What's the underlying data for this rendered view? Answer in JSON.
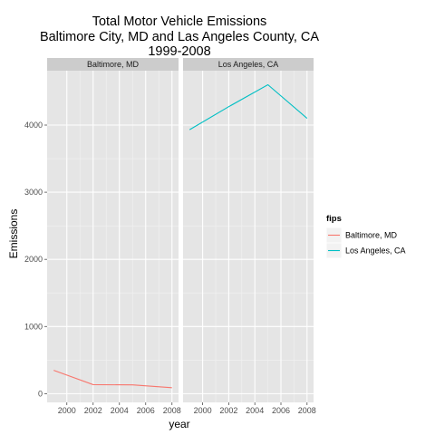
{
  "chart_data": {
    "type": "line",
    "title_lines": [
      "Total Motor Vehicle Emissions",
      "Baltimore City, MD and Las Angeles County, CA",
      "1999-2008"
    ],
    "xlabel": "year",
    "ylabel": "Emissions",
    "x_ticks": [
      2000,
      2002,
      2004,
      2006,
      2008
    ],
    "y_ticks": [
      0,
      1000,
      2000,
      3000,
      4000
    ],
    "xlim": [
      1998.5,
      2008.5
    ],
    "ylim": [
      -130,
      4810
    ],
    "facets": [
      {
        "label": "Baltimore, MD",
        "series_index": 0
      },
      {
        "label": "Los Angeles, CA",
        "series_index": 1
      }
    ],
    "series": [
      {
        "name": "Baltimore, MD",
        "color": "#F8766D",
        "x": [
          1999,
          2002,
          2005,
          2008
        ],
        "y": [
          347,
          134,
          130,
          88
        ]
      },
      {
        "name": "Los Angeles, CA",
        "color": "#00BFC4",
        "x": [
          1999,
          2002,
          2005,
          2008
        ],
        "y": [
          3931,
          4274,
          4601,
          4101
        ]
      }
    ],
    "legend": {
      "title": "fips",
      "position": "right"
    },
    "grid": true,
    "colors": {
      "panel_background": "#E5E5E5",
      "strip_background": "#CCCCCC",
      "grid_major": "#FFFFFF",
      "grid_minor": "#F2F2F2"
    }
  }
}
